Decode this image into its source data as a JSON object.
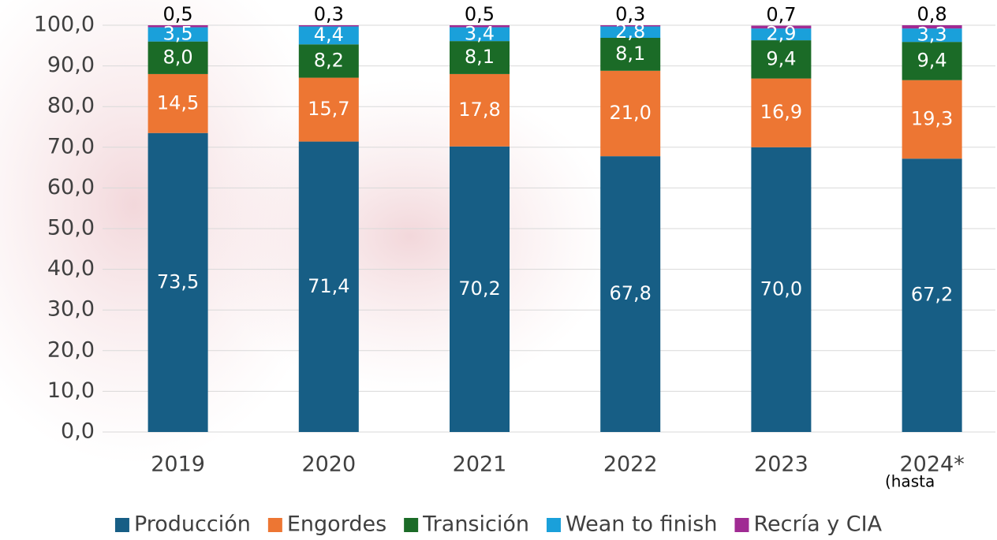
{
  "chart_data": {
    "type": "stacked_bar",
    "categories": [
      "2019",
      "2020",
      "2021",
      "2022",
      "2023",
      "2024*"
    ],
    "x_note": "(hasta",
    "series": [
      {
        "name": "Producción",
        "color": "#175e85",
        "values": [
          73.5,
          71.4,
          70.2,
          67.8,
          70.0,
          67.2
        ],
        "value_labels": [
          "73,5",
          "71,4",
          "70,2",
          "67,8",
          "70,0",
          "67,2"
        ]
      },
      {
        "name": "Engordes",
        "color": "#ed7633",
        "values": [
          14.5,
          15.7,
          17.8,
          21.0,
          16.9,
          19.3
        ],
        "value_labels": [
          "14,5",
          "15,7",
          "17,8",
          "21,0",
          "16,9",
          "19,3"
        ]
      },
      {
        "name": "Transición",
        "color": "#1b6b27",
        "values": [
          8.0,
          8.2,
          8.1,
          8.1,
          9.4,
          9.4
        ],
        "value_labels": [
          "8,0",
          "8,2",
          "8,1",
          "8,1",
          "9,4",
          "9,4"
        ]
      },
      {
        "name": "Wean to finish",
        "color": "#1aa0da",
        "values": [
          3.5,
          4.4,
          3.4,
          2.8,
          2.9,
          3.3
        ],
        "value_labels": [
          "3,5",
          "4,4",
          "3,4",
          "2,8",
          "2,9",
          "3,3"
        ]
      },
      {
        "name": "Recría y CIA",
        "color": "#a02b93",
        "values": [
          0.5,
          0.3,
          0.5,
          0.3,
          0.7,
          0.8
        ],
        "value_labels": [
          "0,5",
          "0,3",
          "0,5",
          "0,3",
          "0,7",
          "0,8"
        ]
      }
    ],
    "ylim": [
      0,
      100
    ],
    "yticks": [
      {
        "value": 0,
        "label": "0,0"
      },
      {
        "value": 10,
        "label": "10,0"
      },
      {
        "value": 20,
        "label": "20,0"
      },
      {
        "value": 30,
        "label": "30,0"
      },
      {
        "value": 40,
        "label": "40,0"
      },
      {
        "value": 50,
        "label": "50,0"
      },
      {
        "value": 60,
        "label": "60,0"
      },
      {
        "value": 70,
        "label": "70,0"
      },
      {
        "value": 80,
        "label": "80,0"
      },
      {
        "value": 90,
        "label": "90,0"
      },
      {
        "value": 100,
        "label": "100,0"
      }
    ],
    "grid": true,
    "legend": "bottom"
  }
}
